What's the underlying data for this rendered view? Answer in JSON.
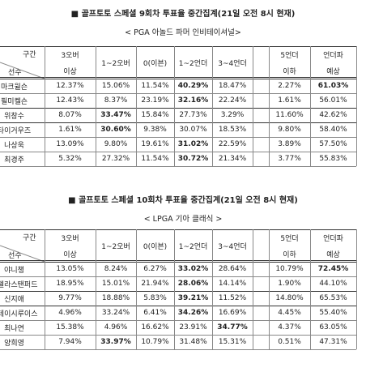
{
  "sections": [
    {
      "title": "■ 골프토토 스페셜 9회차 투표율 중간집계(21일 오전 8시 현재)",
      "subtitle": "< PGA 아놀드 파머 인비테이셔널>",
      "table": {
        "corner_top": "구간",
        "corner_bottom": "선수",
        "headers": [
          [
            "3오버",
            "이상"
          ],
          [
            "1~2오버"
          ],
          [
            "0(이븐)"
          ],
          [
            "1~2언더"
          ],
          [
            "3~4언더"
          ],
          [
            "5언더",
            "이하"
          ],
          [
            "언더파",
            "예상"
          ]
        ],
        "rows": [
          [
            "마크윌슨",
            "12.37%",
            "15.06%",
            "11.54%",
            "40.29%",
            "18.47%",
            "2.27%",
            "61.03%"
          ],
          [
            "필미켈슨",
            "12.43%",
            "8.37%",
            "23.19%",
            "32.16%",
            "22.24%",
            "1.61%",
            "56.01%"
          ],
          [
            "위창수",
            "8.07%",
            "33.47%",
            "15.84%",
            "27.73%",
            "3.29%",
            "11.60%",
            "42.62%"
          ],
          [
            "타이거우즈",
            "1.61%",
            "30.60%",
            "9.38%",
            "30.07%",
            "18.53%",
            "9.80%",
            "58.40%"
          ],
          [
            "나상욱",
            "13.09%",
            "9.80%",
            "19.61%",
            "31.02%",
            "22.59%",
            "3.89%",
            "57.50%"
          ],
          [
            "최경주",
            "5.32%",
            "27.32%",
            "11.54%",
            "30.72%",
            "21.34%",
            "3.77%",
            "55.83%"
          ]
        ]
      }
    },
    {
      "title": "■ 골프토토 스페셜 10회차 투표율 중간집계(21일 오전 8시 현재)",
      "subtitle": "< LPGA 기아 클래식 >",
      "table": {
        "corner_top": "구간",
        "corner_bottom": "선수",
        "headers": [
          [
            "3오버",
            "이상"
          ],
          [
            "1~2오버"
          ],
          [
            "0(이븐)"
          ],
          [
            "1~2언더"
          ],
          [
            "3~4언더"
          ],
          [
            "5언더",
            "이하"
          ],
          [
            "언더파",
            "예상"
          ]
        ],
        "rows": [
          [
            "야니챙",
            "13.05%",
            "8.24%",
            "6.27%",
            "33.02%",
            "28.64%",
            "10.79%",
            "72.45%"
          ],
          [
            "안젤라스탠퍼드",
            "18.95%",
            "15.01%",
            "21.94%",
            "28.06%",
            "14.14%",
            "1.90%",
            "44.10%"
          ],
          [
            "신지애",
            "9.77%",
            "18.88%",
            "5.83%",
            "39.21%",
            "11.52%",
            "14.80%",
            "65.53%"
          ],
          [
            "스테이시루이스",
            "4.96%",
            "33.24%",
            "6.41%",
            "34.26%",
            "16.69%",
            "4.45%",
            "55.40%"
          ],
          [
            "최나연",
            "15.38%",
            "4.96%",
            "16.62%",
            "23.91%",
            "34.77%",
            "4.37%",
            "63.05%"
          ],
          [
            "양희영",
            "7.94%",
            "33.97%",
            "10.79%",
            "31.48%",
            "15.31%",
            "0.51%",
            "47.31%"
          ]
        ]
      }
    }
  ]
}
